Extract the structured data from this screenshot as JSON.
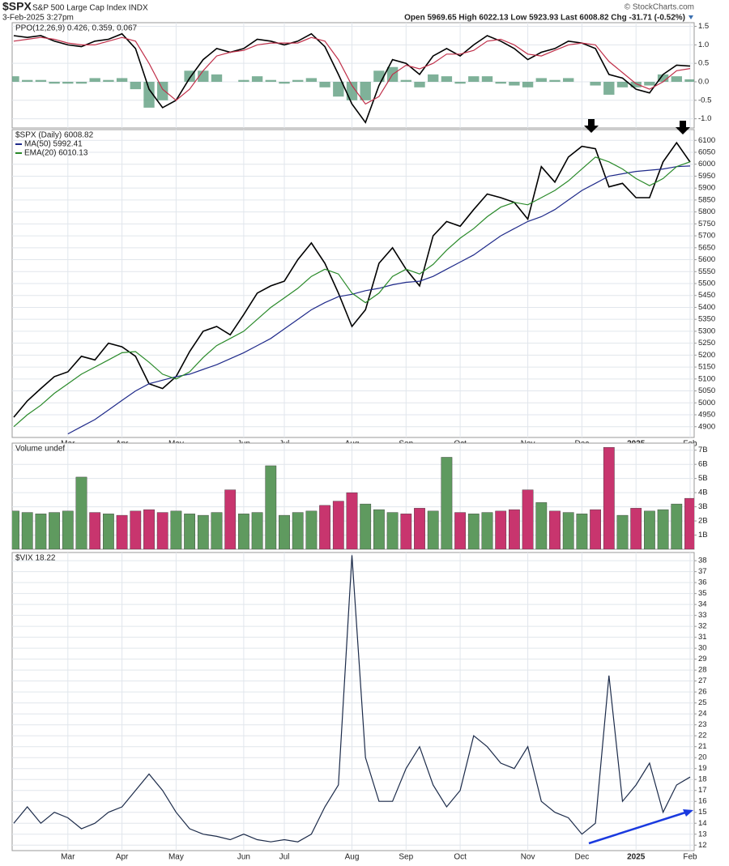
{
  "header": {
    "symbol": "$SPX",
    "name": "S&P 500 Large Cap Index INDX",
    "date": "3-Feb-2025 3:27pm",
    "quote": "Open 5969.65 High 6022.13 Low 5923.93 Last 6008.82 Chg -31.71 (-0.52%)",
    "copyright": "© StockCharts.com"
  },
  "chart_data": [
    {
      "type": "line",
      "title": "PPO(12,26,9) 0.426, 0.359, 0.067",
      "ylim": [
        -1.25,
        1.6
      ],
      "yticks": [
        1.5,
        {
          "value": 1,
          "label": "1.0"
        },
        0.5,
        {
          "value": 0,
          "label": "0.0"
        },
        -0.5,
        {
          "value": -1,
          "label": "-1.0"
        }
      ],
      "grid": true,
      "series": [
        {
          "type": "bar",
          "color": "#5f9e80",
          "values": [
            0.15,
            0.05,
            0.05,
            -0.05,
            -0.05,
            -0.05,
            0.1,
            0.05,
            0.1,
            -0.2,
            -0.7,
            -0.5,
            0,
            0.3,
            0.3,
            0.2,
            0,
            0.05,
            0.15,
            0.05,
            -0.05,
            0.05,
            0.1,
            -0.15,
            -0.4,
            -0.5,
            -0.5,
            0.3,
            0.4,
            0.05,
            -0.15,
            0.2,
            0.15,
            -0.05,
            0.15,
            0.15,
            -0.05,
            -0.1,
            -0.15,
            0.1,
            0.05,
            0.1,
            0,
            -0.1,
            -0.35,
            -0.15,
            -0.15,
            -0.1,
            0.2,
            0.15,
            0.067
          ]
        },
        {
          "type": "line",
          "color": "#000000",
          "values": [
            1.25,
            1.2,
            1.25,
            1.1,
            1.0,
            0.95,
            1.1,
            1.15,
            1.3,
            0.9,
            -0.2,
            -0.7,
            -0.5,
            0.1,
            0.6,
            0.9,
            0.8,
            0.9,
            1.15,
            1.1,
            1.0,
            1.1,
            1.3,
            0.95,
            0.2,
            -0.6,
            -1.1,
            -0.1,
            0.6,
            0.5,
            0.2,
            0.7,
            0.9,
            0.7,
            1.0,
            1.25,
            1.1,
            0.9,
            0.6,
            0.8,
            0.9,
            1.1,
            1.05,
            0.9,
            0.2,
            0.1,
            -0.2,
            -0.3,
            0.2,
            0.45,
            0.426
          ]
        },
        {
          "type": "line",
          "color": "#c0304a",
          "values": [
            1.1,
            1.15,
            1.2,
            1.15,
            1.05,
            1.0,
            1.0,
            1.1,
            1.2,
            1.1,
            0.5,
            -0.2,
            -0.5,
            -0.2,
            0.3,
            0.7,
            0.8,
            0.85,
            1.0,
            1.05,
            1.05,
            1.05,
            1.2,
            1.1,
            0.6,
            -0.1,
            -0.6,
            -0.4,
            0.2,
            0.45,
            0.35,
            0.5,
            0.75,
            0.75,
            0.85,
            1.1,
            1.15,
            1.0,
            0.75,
            0.7,
            0.85,
            1.0,
            1.05,
            1.0,
            0.55,
            0.25,
            -0.05,
            -0.2,
            0.0,
            0.3,
            0.359
          ]
        }
      ]
    },
    {
      "type": "line",
      "title": "$SPX (Daily) 6008.82",
      "ylim": [
        4855,
        6145
      ],
      "yticks": [
        4900,
        4950,
        5000,
        5050,
        5100,
        5150,
        5200,
        5250,
        5300,
        5350,
        5400,
        5450,
        5500,
        5550,
        5600,
        5650,
        5700,
        5750,
        5800,
        5850,
        5900,
        5950,
        6000,
        6050,
        6100
      ],
      "grid": true,
      "categories": [
        null,
        null,
        null,
        null,
        "Mar",
        null,
        null,
        null,
        "Apr",
        null,
        null,
        null,
        "May",
        null,
        null,
        null,
        null,
        "Jun",
        null,
        null,
        "Jul",
        null,
        null,
        null,
        null,
        "Aug",
        null,
        null,
        null,
        "Sep",
        null,
        null,
        null,
        "Oct",
        null,
        null,
        null,
        null,
        "Nov",
        null,
        null,
        null,
        "Dec",
        null,
        null,
        null,
        "2025",
        null,
        null,
        null,
        "Feb"
      ],
      "series": [
        {
          "color": "#000000",
          "values": [
            4940,
            5008,
            5060,
            5110,
            5130,
            5195,
            5180,
            5250,
            5235,
            5195,
            5080,
            5060,
            5110,
            5215,
            5300,
            5320,
            5285,
            5370,
            5460,
            5490,
            5510,
            5600,
            5670,
            5585,
            5460,
            5320,
            5390,
            5585,
            5650,
            5560,
            5490,
            5700,
            5760,
            5740,
            5810,
            5875,
            5860,
            5840,
            5770,
            5990,
            5925,
            6030,
            6075,
            6065,
            5905,
            5920,
            5860,
            5860,
            6010,
            6090,
            6008.82
          ]
        },
        {
          "name": "MA(50) 5992.41",
          "color": "#1f2a8a",
          "values": [
            null,
            null,
            null,
            null,
            4870,
            4900,
            4930,
            4970,
            5010,
            5050,
            5080,
            5095,
            5110,
            5120,
            5140,
            5160,
            5185,
            5210,
            5240,
            5270,
            5310,
            5350,
            5390,
            5420,
            5445,
            5455,
            5470,
            5480,
            5495,
            5505,
            5510,
            5530,
            5560,
            5590,
            5620,
            5660,
            5700,
            5730,
            5760,
            5780,
            5810,
            5850,
            5890,
            5920,
            5950,
            5960,
            5970,
            5975,
            5980,
            5990,
            5992.41
          ]
        },
        {
          "name": "EMA(20) 6010.13",
          "color": "#2a8a2a",
          "values": [
            4900,
            4950,
            4990,
            5040,
            5080,
            5120,
            5150,
            5180,
            5210,
            5215,
            5170,
            5120,
            5100,
            5130,
            5190,
            5240,
            5270,
            5300,
            5350,
            5400,
            5440,
            5480,
            5530,
            5560,
            5540,
            5460,
            5420,
            5460,
            5530,
            5560,
            5540,
            5580,
            5640,
            5690,
            5730,
            5780,
            5820,
            5840,
            5830,
            5860,
            5890,
            5930,
            5980,
            6030,
            6010,
            5980,
            5940,
            5910,
            5940,
            5990,
            6010.13
          ]
        }
      ]
    },
    {
      "type": "bar",
      "title": "Volume undef",
      "ylim": [
        0,
        7.5
      ],
      "up_color": "#5f9a5f",
      "down_color": "#c8356e",
      "yticks": [
        {
          "value": 1,
          "label": "1B"
        },
        {
          "value": 2,
          "label": "2B"
        },
        {
          "value": 3,
          "label": "3B"
        },
        {
          "value": 4,
          "label": "4B"
        },
        {
          "value": 5,
          "label": "5B"
        },
        {
          "value": 6,
          "label": "6B"
        },
        {
          "value": 7,
          "label": "7B"
        }
      ],
      "grid": true,
      "values": [
        2.7,
        2.6,
        2.5,
        2.6,
        2.7,
        5.1,
        2.6,
        2.5,
        2.4,
        2.7,
        2.8,
        2.6,
        2.7,
        2.5,
        2.4,
        2.6,
        4.2,
        2.5,
        2.6,
        5.9,
        2.4,
        2.6,
        2.7,
        3.1,
        3.4,
        4.0,
        3.2,
        2.8,
        2.6,
        2.5,
        2.9,
        2.7,
        6.5,
        2.6,
        2.5,
        2.6,
        2.7,
        2.8,
        4.2,
        3.3,
        2.7,
        2.6,
        2.5,
        2.8,
        7.2,
        2.4,
        2.9,
        2.7,
        2.8,
        3.2,
        3.6
      ]
    },
    {
      "type": "line",
      "title": "$VIX 18.22",
      "ylim": [
        11.5,
        38.75
      ],
      "yticks": [
        12,
        13,
        14,
        15,
        16,
        17,
        18,
        19,
        20,
        21,
        22,
        23,
        24,
        25,
        26,
        27,
        28,
        29,
        30,
        31,
        32,
        33,
        34,
        35,
        36,
        37,
        38
      ],
      "grid": true,
      "categories": [
        null,
        null,
        null,
        null,
        "Mar",
        null,
        null,
        null,
        "Apr",
        null,
        null,
        null,
        "May",
        null,
        null,
        null,
        null,
        "Jun",
        null,
        null,
        "Jul",
        null,
        null,
        null,
        null,
        "Aug",
        null,
        null,
        null,
        "Sep",
        null,
        null,
        null,
        "Oct",
        null,
        null,
        null,
        null,
        "Nov",
        null,
        null,
        null,
        "Dec",
        null,
        null,
        null,
        "2025",
        null,
        null,
        null,
        "Feb"
      ],
      "series": [
        {
          "color": "#1c2b4a",
          "values": [
            14,
            15.5,
            14,
            15,
            14.5,
            13.5,
            14,
            15,
            15.5,
            17,
            18.5,
            17,
            15,
            13.5,
            13,
            12.8,
            12.5,
            13,
            12.5,
            12.3,
            12.5,
            12.3,
            13,
            15.5,
            17.5,
            38.5,
            20,
            16,
            16,
            19,
            21,
            17.5,
            15.5,
            17,
            22,
            21,
            19.5,
            19,
            21,
            16,
            15,
            14.5,
            13,
            14,
            27.5,
            16,
            17.5,
            19.5,
            15,
            17.5,
            18.22
          ]
        }
      ]
    }
  ]
}
